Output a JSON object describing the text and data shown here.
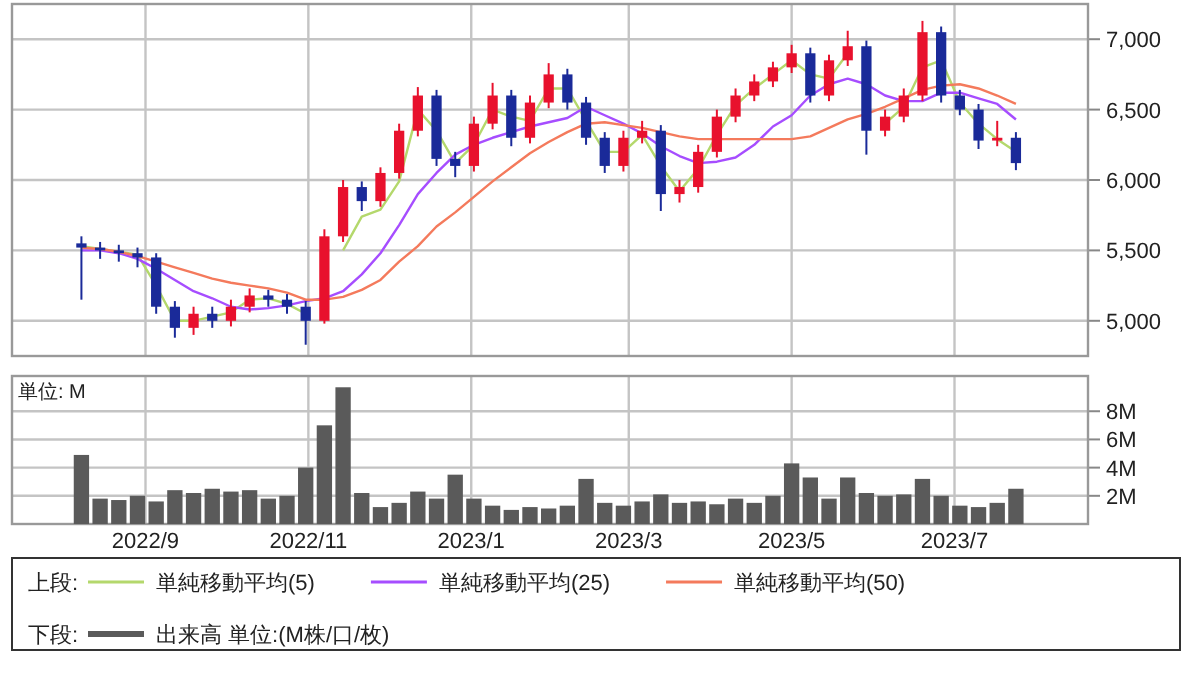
{
  "chart_data": [
    {
      "type": "candlestick",
      "legend": "bottom",
      "legend_title": "上段:",
      "grid": true,
      "tick_labels": "y",
      "x": [
        "2022-08-08",
        "2022-08-15",
        "2022-08-22",
        "2022-08-29",
        "2022-09-05",
        "2022-09-12",
        "2022-09-19",
        "2022-09-26",
        "2022-10-03",
        "2022-10-10",
        "2022-10-17",
        "2022-10-24",
        "2022-10-31",
        "2022-11-07",
        "2022-11-14",
        "2022-11-21",
        "2022-11-28",
        "2022-12-05",
        "2022-12-12",
        "2022-12-19",
        "2022-12-26",
        "2023-01-02",
        "2023-01-09",
        "2023-01-16",
        "2023-01-23",
        "2023-01-30",
        "2023-02-06",
        "2023-02-13",
        "2023-02-20",
        "2023-02-27",
        "2023-03-06",
        "2023-03-13",
        "2023-03-20",
        "2023-03-27",
        "2023-04-03",
        "2023-04-10",
        "2023-04-17",
        "2023-04-24",
        "2023-05-01",
        "2023-05-08",
        "2023-05-15",
        "2023-05-22",
        "2023-05-29",
        "2023-06-05",
        "2023-06-12",
        "2023-06-19",
        "2023-06-26",
        "2023-07-03",
        "2023-07-10",
        "2023-07-17",
        "2023-07-24"
      ],
      "ohlc": [
        [
          5550,
          5600,
          5150,
          5520
        ],
        [
          5520,
          5560,
          5440,
          5500
        ],
        [
          5500,
          5540,
          5420,
          5480
        ],
        [
          5480,
          5520,
          5380,
          5450
        ],
        [
          5450,
          5480,
          5050,
          5100
        ],
        [
          5100,
          5140,
          4880,
          4950
        ],
        [
          4950,
          5100,
          4900,
          5050
        ],
        [
          5050,
          5100,
          4950,
          5000
        ],
        [
          5000,
          5150,
          4960,
          5100
        ],
        [
          5100,
          5230,
          5060,
          5180
        ],
        [
          5180,
          5220,
          5100,
          5150
        ],
        [
          5150,
          5190,
          5050,
          5100
        ],
        [
          5100,
          5140,
          4830,
          5000
        ],
        [
          5000,
          5650,
          4980,
          5600
        ],
        [
          5600,
          6000,
          5560,
          5950
        ],
        [
          5950,
          5990,
          5780,
          5850
        ],
        [
          5850,
          6090,
          5810,
          6050
        ],
        [
          6050,
          6400,
          6010,
          6350
        ],
        [
          6350,
          6660,
          6310,
          6600
        ],
        [
          6600,
          6640,
          6100,
          6150
        ],
        [
          6150,
          6200,
          6020,
          6100
        ],
        [
          6100,
          6450,
          6060,
          6400
        ],
        [
          6400,
          6690,
          6360,
          6600
        ],
        [
          6600,
          6640,
          6240,
          6300
        ],
        [
          6300,
          6600,
          6260,
          6550
        ],
        [
          6550,
          6830,
          6510,
          6750
        ],
        [
          6750,
          6790,
          6500,
          6550
        ],
        [
          6550,
          6590,
          6250,
          6300
        ],
        [
          6300,
          6340,
          6050,
          6100
        ],
        [
          6100,
          6350,
          6060,
          6300
        ],
        [
          6300,
          6420,
          6260,
          6350
        ],
        [
          6350,
          6390,
          5780,
          5900
        ],
        [
          5900,
          6000,
          5840,
          5950
        ],
        [
          5950,
          6250,
          5910,
          6200
        ],
        [
          6200,
          6500,
          6160,
          6450
        ],
        [
          6450,
          6650,
          6410,
          6600
        ],
        [
          6600,
          6750,
          6560,
          6700
        ],
        [
          6700,
          6840,
          6660,
          6800
        ],
        [
          6800,
          6960,
          6760,
          6900
        ],
        [
          6900,
          6940,
          6550,
          6600
        ],
        [
          6600,
          6890,
          6560,
          6850
        ],
        [
          6850,
          7060,
          6810,
          6950
        ],
        [
          6950,
          6990,
          6180,
          6350
        ],
        [
          6350,
          6500,
          6310,
          6450
        ],
        [
          6450,
          6650,
          6410,
          6600
        ],
        [
          6600,
          7130,
          6560,
          7050
        ],
        [
          7050,
          7090,
          6550,
          6600
        ],
        [
          6600,
          6640,
          6460,
          6500
        ],
        [
          6500,
          6540,
          6220,
          6280
        ],
        [
          6280,
          6420,
          6240,
          6300
        ],
        [
          6300,
          6340,
          6070,
          6120
        ]
      ],
      "colors": [
        "#1a2a99",
        "#1a2a99",
        "#1a2a99",
        "#1a2a99",
        "#1a2a99",
        "#1a2a99",
        "#e8112d",
        "#1a2a99",
        "#e8112d",
        "#e8112d",
        "#1a2a99",
        "#1a2a99",
        "#1a2a99",
        "#e8112d",
        "#e8112d",
        "#1a2a99",
        "#e8112d",
        "#e8112d",
        "#e8112d",
        "#1a2a99",
        "#1a2a99",
        "#e8112d",
        "#e8112d",
        "#1a2a99",
        "#e8112d",
        "#e8112d",
        "#1a2a99",
        "#1a2a99",
        "#1a2a99",
        "#e8112d",
        "#e8112d",
        "#1a2a99",
        "#e8112d",
        "#e8112d",
        "#e8112d",
        "#e8112d",
        "#e8112d",
        "#e8112d",
        "#e8112d",
        "#1a2a99",
        "#e8112d",
        "#e8112d",
        "#1a2a99",
        "#e8112d",
        "#e8112d",
        "#e8112d",
        "#1a2a99",
        "#1a2a99",
        "#1a2a99",
        "#e8112d",
        "#1a2a99"
      ],
      "series": [
        {
          "type": "line",
          "name": "単純移動平均(5)",
          "color": "#b4d86c",
          "values": [
            5530,
            5510,
            5490,
            5470,
            5250,
            5000,
            5000,
            5030,
            5060,
            5150,
            5160,
            5120,
            5050,
            null,
            5500,
            5740,
            5790,
            5990,
            6500,
            6350,
            6120,
            6250,
            6500,
            6450,
            6420,
            6650,
            6650,
            6420,
            6200,
            6200,
            6320,
            6100,
            5920,
            6080,
            6320,
            6530,
            6650,
            6750,
            6850,
            6750,
            6720,
            6900,
            null,
            6400,
            6520,
            6800,
            6850,
            6550,
            6400,
            6290,
            6200
          ]
        },
        {
          "type": "line",
          "name": "単純移動平均(25)",
          "color": "#a64dff",
          "values": [
            5500,
            5500,
            5480,
            5440,
            5370,
            5290,
            5210,
            5160,
            5100,
            5080,
            5090,
            5110,
            5140,
            5160,
            5210,
            5330,
            5480,
            5680,
            5900,
            6050,
            6180,
            6250,
            6300,
            6340,
            6380,
            6410,
            6440,
            6520,
            6460,
            6400,
            6330,
            6240,
            6170,
            6120,
            6130,
            6160,
            6250,
            6380,
            6460,
            6600,
            6680,
            6720,
            6680,
            6600,
            6560,
            6560,
            6620,
            6620,
            6580,
            6540,
            6430
          ]
        },
        {
          "type": "line",
          "name": "単純移動平均(50)",
          "color": "#f47a5c",
          "values": [
            5520,
            5510,
            5490,
            5460,
            5420,
            5380,
            5340,
            5300,
            5270,
            5250,
            5230,
            5200,
            5150,
            5150,
            5170,
            5220,
            5290,
            5420,
            5530,
            5670,
            5770,
            5880,
            5990,
            6090,
            6190,
            6270,
            6340,
            6400,
            6410,
            6390,
            6370,
            6340,
            6310,
            6290,
            6290,
            6290,
            6290,
            6290,
            6290,
            6310,
            6370,
            6430,
            6470,
            6520,
            6580,
            6640,
            6670,
            6680,
            6650,
            6600,
            6540
          ]
        }
      ],
      "xlim": [
        "2022-07-13",
        "2023-08-20"
      ],
      "xticks": [
        {
          "value": "2022-09-01",
          "label": null
        },
        {
          "value": "2022-11-01",
          "label": null
        },
        {
          "value": "2023-01-01",
          "label": null
        },
        {
          "value": "2023-03-01",
          "label": null
        },
        {
          "value": "2023-05-01",
          "label": null
        },
        {
          "value": "2023-07-01",
          "label": null
        }
      ],
      "ylim": [
        4750,
        7250
      ],
      "yticks": [
        {
          "value": 5000,
          "label": "5,000"
        },
        {
          "value": 5500,
          "label": "5,500"
        },
        {
          "value": 6000,
          "label": "6,000"
        },
        {
          "value": 6500,
          "label": "6,500"
        },
        {
          "value": 7000,
          "label": "7,000"
        }
      ]
    },
    {
      "type": "bar",
      "legend": "bottom",
      "legend_title": "下段:",
      "grid": true,
      "ylabel": "単位: M",
      "x": [
        "2022-08-08",
        "2022-08-15",
        "2022-08-22",
        "2022-08-29",
        "2022-09-05",
        "2022-09-12",
        "2022-09-19",
        "2022-09-26",
        "2022-10-03",
        "2022-10-10",
        "2022-10-17",
        "2022-10-24",
        "2022-10-31",
        "2022-11-07",
        "2022-11-14",
        "2022-11-21",
        "2022-11-28",
        "2022-12-05",
        "2022-12-12",
        "2022-12-19",
        "2022-12-26",
        "2023-01-02",
        "2023-01-09",
        "2023-01-16",
        "2023-01-23",
        "2023-01-30",
        "2023-02-06",
        "2023-02-13",
        "2023-02-20",
        "2023-02-27",
        "2023-03-06",
        "2023-03-13",
        "2023-03-20",
        "2023-03-27",
        "2023-04-03",
        "2023-04-10",
        "2023-04-17",
        "2023-04-24",
        "2023-05-01",
        "2023-05-08",
        "2023-05-15",
        "2023-05-22",
        "2023-05-29",
        "2023-06-05",
        "2023-06-12",
        "2023-06-19",
        "2023-06-26",
        "2023-07-03",
        "2023-07-10",
        "2023-07-17",
        "2023-07-24"
      ],
      "series": [
        {
          "name": "出来高 単位:(M株/口/枚)",
          "color": "#5a5a5a",
          "values": [
            4.9,
            1.8,
            1.7,
            2.0,
            1.6,
            2.4,
            2.2,
            2.5,
            2.3,
            2.4,
            1.8,
            2.0,
            4.0,
            7.0,
            9.7,
            2.2,
            1.2,
            1.5,
            2.3,
            1.8,
            3.5,
            1.8,
            1.3,
            1.0,
            1.2,
            1.1,
            1.3,
            3.2,
            1.5,
            1.3,
            1.6,
            2.1,
            1.5,
            1.6,
            1.4,
            1.8,
            1.5,
            2.0,
            4.3,
            3.3,
            1.8,
            3.3,
            2.2,
            2.0,
            2.1,
            3.2,
            2.0,
            1.3,
            1.2,
            1.5,
            2.5
          ]
        }
      ],
      "xlim": [
        "2022-07-13",
        "2023-08-20"
      ],
      "xticks": [
        {
          "value": "2022-09-01",
          "label": "2022/9"
        },
        {
          "value": "2022-11-01",
          "label": "2022/11"
        },
        {
          "value": "2023-01-01",
          "label": "2023/1"
        },
        {
          "value": "2023-03-01",
          "label": "2023/3"
        },
        {
          "value": "2023-05-01",
          "label": "2023/5"
        },
        {
          "value": "2023-07-01",
          "label": "2023/7"
        }
      ],
      "ylim": [
        0,
        10.5
      ],
      "yticks": [
        {
          "value": 2,
          "label": "2M"
        },
        {
          "value": 4,
          "label": "4M"
        },
        {
          "value": 6,
          "label": "6M"
        },
        {
          "value": 8,
          "label": "8M"
        }
      ]
    }
  ]
}
